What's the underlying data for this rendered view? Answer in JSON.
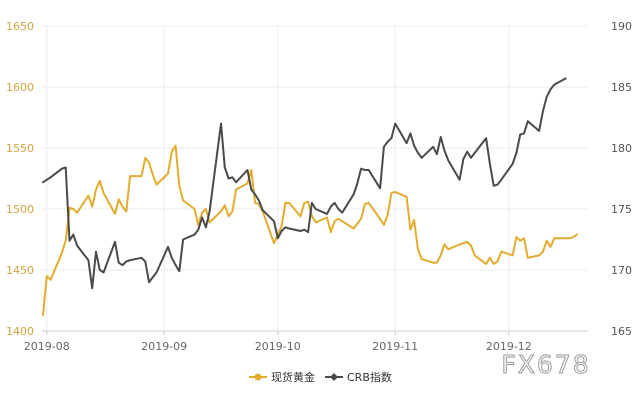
{
  "chart_data": {
    "type": "line",
    "x_ticks": [
      "2019-08",
      "2019-09",
      "2019-10",
      "2019-11",
      "2019-12"
    ],
    "y_left": {
      "ticks": [
        1400,
        1450,
        1500,
        1550,
        1600,
        1650
      ],
      "range": [
        1400,
        1650
      ]
    },
    "y_right": {
      "ticks": [
        165,
        170,
        175,
        180,
        185,
        190
      ],
      "range": [
        165,
        190
      ]
    },
    "grid": true,
    "legend_position": "bottom-center",
    "series": [
      {
        "name": "现货黄金",
        "axis": "left",
        "color": "#e2ac2e",
        "marker": "circle",
        "points": [
          [
            "2019-07-31",
            1413
          ],
          [
            "2019-08-01",
            1445
          ],
          [
            "2019-08-02",
            1442
          ],
          [
            "2019-08-05",
            1464
          ],
          [
            "2019-08-06",
            1474
          ],
          [
            "2019-08-07",
            1501
          ],
          [
            "2019-08-08",
            1500
          ],
          [
            "2019-08-09",
            1497
          ],
          [
            "2019-08-12",
            1511
          ],
          [
            "2019-08-13",
            1502
          ],
          [
            "2019-08-14",
            1516
          ],
          [
            "2019-08-15",
            1523
          ],
          [
            "2019-08-16",
            1513
          ],
          [
            "2019-08-19",
            1496
          ],
          [
            "2019-08-20",
            1508
          ],
          [
            "2019-08-21",
            1502
          ],
          [
            "2019-08-22",
            1498
          ],
          [
            "2019-08-23",
            1527
          ],
          [
            "2019-08-26",
            1527
          ],
          [
            "2019-08-27",
            1542
          ],
          [
            "2019-08-28",
            1538
          ],
          [
            "2019-08-29",
            1528
          ],
          [
            "2019-08-30",
            1520
          ],
          [
            "2019-09-02",
            1529
          ],
          [
            "2019-09-03",
            1547
          ],
          [
            "2019-09-04",
            1552
          ],
          [
            "2019-09-05",
            1519
          ],
          [
            "2019-09-06",
            1507
          ],
          [
            "2019-09-09",
            1500
          ],
          [
            "2019-09-10",
            1487
          ],
          [
            "2019-09-11",
            1497
          ],
          [
            "2019-09-12",
            1500
          ],
          [
            "2019-09-13",
            1489
          ],
          [
            "2019-09-16",
            1498
          ],
          [
            "2019-09-17",
            1503
          ],
          [
            "2019-09-18",
            1494
          ],
          [
            "2019-09-19",
            1498
          ],
          [
            "2019-09-20",
            1516
          ],
          [
            "2019-09-23",
            1521
          ],
          [
            "2019-09-24",
            1532
          ],
          [
            "2019-09-25",
            1505
          ],
          [
            "2019-09-26",
            1504
          ],
          [
            "2019-09-27",
            1498
          ],
          [
            "2019-09-30",
            1472
          ],
          [
            "2019-10-01",
            1479
          ],
          [
            "2019-10-02",
            1486
          ],
          [
            "2019-10-03",
            1505
          ],
          [
            "2019-10-04",
            1505
          ],
          [
            "2019-10-07",
            1494
          ],
          [
            "2019-10-08",
            1505
          ],
          [
            "2019-10-09",
            1506
          ],
          [
            "2019-10-10",
            1494
          ],
          [
            "2019-10-11",
            1489
          ],
          [
            "2019-10-14",
            1493
          ],
          [
            "2019-10-15",
            1481
          ],
          [
            "2019-10-16",
            1490
          ],
          [
            "2019-10-17",
            1492
          ],
          [
            "2019-10-18",
            1490
          ],
          [
            "2019-10-21",
            1484
          ],
          [
            "2019-10-22",
            1488
          ],
          [
            "2019-10-23",
            1492
          ],
          [
            "2019-10-24",
            1504
          ],
          [
            "2019-10-25",
            1505
          ],
          [
            "2019-10-28",
            1492
          ],
          [
            "2019-10-29",
            1487
          ],
          [
            "2019-10-30",
            1495
          ],
          [
            "2019-10-31",
            1513
          ],
          [
            "2019-11-01",
            1514
          ],
          [
            "2019-11-04",
            1510
          ],
          [
            "2019-11-05",
            1483
          ],
          [
            "2019-11-06",
            1491
          ],
          [
            "2019-11-07",
            1467
          ],
          [
            "2019-11-08",
            1459
          ],
          [
            "2019-11-11",
            1456
          ],
          [
            "2019-11-12",
            1456
          ],
          [
            "2019-11-13",
            1462
          ],
          [
            "2019-11-14",
            1471
          ],
          [
            "2019-11-15",
            1467
          ],
          [
            "2019-11-18",
            1471
          ],
          [
            "2019-11-19",
            1472
          ],
          [
            "2019-11-20",
            1473
          ],
          [
            "2019-11-21",
            1470
          ],
          [
            "2019-11-22",
            1462
          ],
          [
            "2019-11-25",
            1455
          ],
          [
            "2019-11-26",
            1460
          ],
          [
            "2019-11-27",
            1455
          ],
          [
            "2019-11-28",
            1457
          ],
          [
            "2019-11-29",
            1465
          ],
          [
            "2019-12-02",
            1462
          ],
          [
            "2019-12-03",
            1477
          ],
          [
            "2019-12-04",
            1474
          ],
          [
            "2019-12-05",
            1476
          ],
          [
            "2019-12-06",
            1460
          ],
          [
            "2019-12-09",
            1462
          ],
          [
            "2019-12-10",
            1465
          ],
          [
            "2019-12-11",
            1474
          ],
          [
            "2019-12-12",
            1469
          ],
          [
            "2019-12-13",
            1476
          ],
          [
            "2019-12-16",
            1476
          ],
          [
            "2019-12-17",
            1476
          ],
          [
            "2019-12-18",
            1477
          ],
          [
            "2019-12-19",
            1479
          ]
        ]
      },
      {
        "name": "CRB指数",
        "axis": "right",
        "color": "#4a4a4a",
        "marker": "diamond",
        "points": [
          [
            "2019-07-31",
            177.2
          ],
          [
            "2019-08-02",
            177.6
          ],
          [
            "2019-08-05",
            178.3
          ],
          [
            "2019-08-06",
            178.4
          ],
          [
            "2019-08-07",
            172.4
          ],
          [
            "2019-08-08",
            172.9
          ],
          [
            "2019-08-09",
            172.0
          ],
          [
            "2019-08-12",
            170.8
          ],
          [
            "2019-08-13",
            168.5
          ],
          [
            "2019-08-14",
            171.5
          ],
          [
            "2019-08-15",
            170.0
          ],
          [
            "2019-08-16",
            169.8
          ],
          [
            "2019-08-19",
            172.3
          ],
          [
            "2019-08-20",
            170.6
          ],
          [
            "2019-08-21",
            170.4
          ],
          [
            "2019-08-22",
            170.7
          ],
          [
            "2019-08-23",
            170.8
          ],
          [
            "2019-08-26",
            171.0
          ],
          [
            "2019-08-27",
            170.7
          ],
          [
            "2019-08-28",
            169.0
          ],
          [
            "2019-08-29",
            169.4
          ],
          [
            "2019-08-30",
            169.8
          ],
          [
            "2019-09-02",
            171.9
          ],
          [
            "2019-09-03",
            171.0
          ],
          [
            "2019-09-04",
            170.4
          ],
          [
            "2019-09-05",
            169.9
          ],
          [
            "2019-09-06",
            172.5
          ],
          [
            "2019-09-09",
            172.9
          ],
          [
            "2019-09-10",
            173.3
          ],
          [
            "2019-09-11",
            174.3
          ],
          [
            "2019-09-12",
            173.5
          ],
          [
            "2019-09-13",
            174.8
          ],
          [
            "2019-09-16",
            182.0
          ],
          [
            "2019-09-17",
            178.4
          ],
          [
            "2019-09-18",
            177.5
          ],
          [
            "2019-09-19",
            177.6
          ],
          [
            "2019-09-20",
            177.2
          ],
          [
            "2019-09-23",
            178.2
          ],
          [
            "2019-09-24",
            176.6
          ],
          [
            "2019-09-25",
            176.2
          ],
          [
            "2019-09-26",
            175.7
          ],
          [
            "2019-09-27",
            174.9
          ],
          [
            "2019-09-30",
            174.0
          ],
          [
            "2019-10-01",
            172.6
          ],
          [
            "2019-10-02",
            173.2
          ],
          [
            "2019-10-03",
            173.5
          ],
          [
            "2019-10-04",
            173.4
          ],
          [
            "2019-10-07",
            173.2
          ],
          [
            "2019-10-08",
            173.3
          ],
          [
            "2019-10-09",
            173.1
          ],
          [
            "2019-10-10",
            175.5
          ],
          [
            "2019-10-11",
            175.0
          ],
          [
            "2019-10-14",
            174.6
          ],
          [
            "2019-10-15",
            175.2
          ],
          [
            "2019-10-16",
            175.5
          ],
          [
            "2019-10-17",
            175.0
          ],
          [
            "2019-10-18",
            174.7
          ],
          [
            "2019-10-21",
            176.2
          ],
          [
            "2019-10-22",
            177.1
          ],
          [
            "2019-10-23",
            178.3
          ],
          [
            "2019-10-24",
            178.2
          ],
          [
            "2019-10-25",
            178.2
          ],
          [
            "2019-10-28",
            176.7
          ],
          [
            "2019-10-29",
            180.1
          ],
          [
            "2019-10-30",
            180.5
          ],
          [
            "2019-10-31",
            180.8
          ],
          [
            "2019-11-01",
            182.0
          ],
          [
            "2019-11-04",
            180.4
          ],
          [
            "2019-11-05",
            181.2
          ],
          [
            "2019-11-06",
            180.2
          ],
          [
            "2019-11-07",
            179.6
          ],
          [
            "2019-11-08",
            179.2
          ],
          [
            "2019-11-11",
            180.1
          ],
          [
            "2019-11-12",
            179.5
          ],
          [
            "2019-11-13",
            180.9
          ],
          [
            "2019-11-14",
            179.8
          ],
          [
            "2019-11-15",
            179.0
          ],
          [
            "2019-11-18",
            177.4
          ],
          [
            "2019-11-19",
            179.1
          ],
          [
            "2019-11-20",
            179.7
          ],
          [
            "2019-11-21",
            179.2
          ],
          [
            "2019-11-22",
            179.6
          ],
          [
            "2019-11-25",
            180.8
          ],
          [
            "2019-11-26",
            178.7
          ],
          [
            "2019-11-27",
            176.9
          ],
          [
            "2019-11-28",
            177.0
          ],
          [
            "2019-11-29",
            177.4
          ],
          [
            "2019-12-02",
            178.7
          ],
          [
            "2019-12-03",
            179.6
          ],
          [
            "2019-12-04",
            181.1
          ],
          [
            "2019-12-05",
            181.2
          ],
          [
            "2019-12-06",
            182.2
          ],
          [
            "2019-12-09",
            181.4
          ],
          [
            "2019-12-10",
            183.0
          ],
          [
            "2019-12-11",
            184.2
          ],
          [
            "2019-12-12",
            184.8
          ],
          [
            "2019-12-13",
            185.2
          ],
          [
            "2019-12-16",
            185.7
          ]
        ]
      }
    ]
  },
  "watermark": "FX678"
}
